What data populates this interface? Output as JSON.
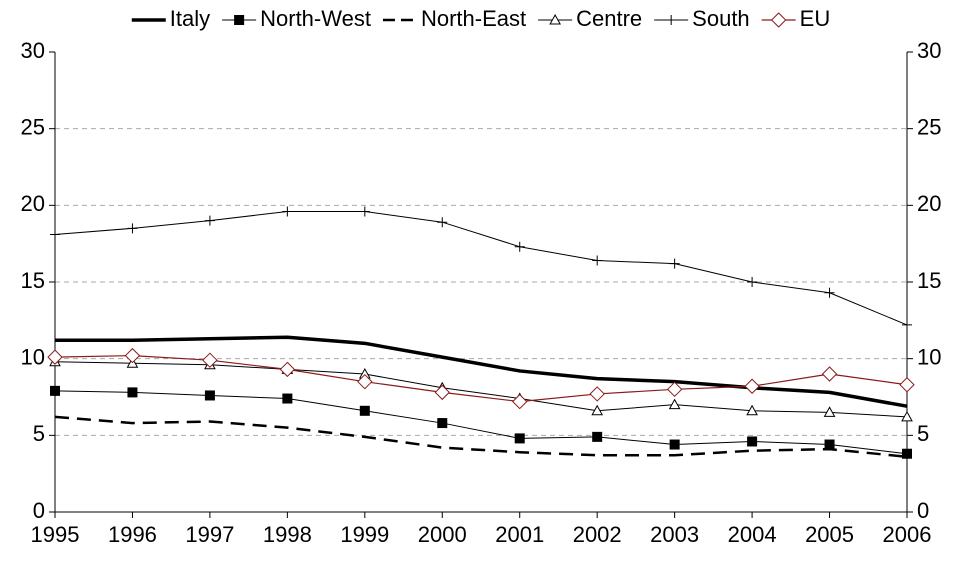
{
  "chart_data": {
    "type": "line",
    "categories": [
      "1995",
      "1996",
      "1997",
      "1998",
      "1999",
      "2000",
      "2001",
      "2002",
      "2003",
      "2004",
      "2005",
      "2006"
    ],
    "series": [
      {
        "name": "Italy",
        "color": "#000000",
        "width": 3.5,
        "dash": false,
        "marker": "none",
        "values": [
          11.2,
          11.2,
          11.3,
          11.4,
          11.0,
          10.1,
          9.2,
          8.7,
          8.5,
          8.1,
          7.8,
          6.9
        ]
      },
      {
        "name": "North-West",
        "color": "#000000",
        "width": 1,
        "dash": false,
        "marker": "square",
        "values": [
          7.9,
          7.8,
          7.6,
          7.4,
          6.6,
          5.8,
          4.8,
          4.9,
          4.4,
          4.6,
          4.4,
          3.8
        ]
      },
      {
        "name": "North-East",
        "color": "#000000",
        "width": 2.5,
        "dash": true,
        "marker": "none",
        "values": [
          6.2,
          5.8,
          5.9,
          5.5,
          4.9,
          4.2,
          3.9,
          3.7,
          3.7,
          4.0,
          4.1,
          3.6
        ]
      },
      {
        "name": "Centre",
        "color": "#000000",
        "width": 1,
        "dash": false,
        "marker": "triangle",
        "values": [
          9.8,
          9.7,
          9.6,
          9.3,
          9.0,
          8.1,
          7.4,
          6.6,
          7.0,
          6.6,
          6.5,
          6.2
        ]
      },
      {
        "name": "South",
        "color": "#000000",
        "width": 1,
        "dash": false,
        "marker": "plus",
        "values": [
          18.1,
          18.5,
          19.0,
          19.6,
          19.6,
          18.9,
          17.3,
          16.4,
          16.2,
          15.0,
          14.3,
          12.2
        ]
      },
      {
        "name": "EU",
        "color": "#8b1a1a",
        "width": 1.2,
        "dash": false,
        "marker": "diamond",
        "values": [
          10.1,
          10.2,
          9.9,
          9.3,
          8.5,
          7.8,
          7.2,
          7.7,
          8.0,
          8.2,
          9.0,
          8.3
        ]
      }
    ],
    "ylim": [
      0,
      30
    ],
    "yticks": [
      0,
      5,
      10,
      15,
      20,
      25,
      30
    ],
    "y2lim": [
      0,
      30
    ],
    "y2ticks": [
      0,
      5,
      10,
      15,
      20,
      25,
      30
    ],
    "grid": true,
    "legend": "top"
  }
}
